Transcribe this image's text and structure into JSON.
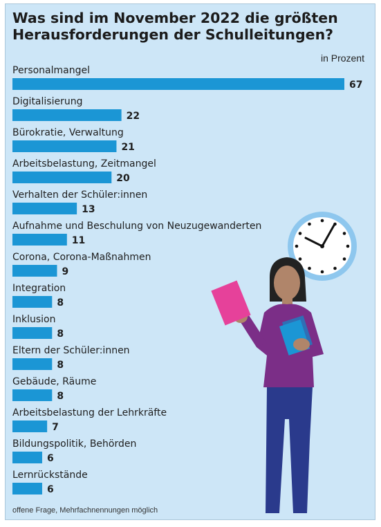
{
  "title": "Was sind im November 2022 die größten Heraus­forderungen der Schulleitungen?",
  "unit_label": "in Prozent",
  "footnote": "offene Frage, Mehrfachnennungen möglich",
  "colors": {
    "bar": "#1b96d5",
    "background": "#cde6f7"
  },
  "chart_data": {
    "type": "bar",
    "orientation": "horizontal",
    "categories": [
      "Personalmangel",
      "Digitalisierung",
      "Bürokratie, Verwaltung",
      "Arbeitsbelastung, Zeitmangel",
      "Verhalten der Schüler:innen",
      "Aufnahme und Beschulung von Neuzugewanderten",
      "Corona, Corona-Maßnahmen",
      "Integration",
      "Inklusion",
      "Eltern der Schüler:innen",
      "Gebäude, Räume",
      "Arbeitsbelastung der Lehrkräfte",
      "Bildungspolitik, Behörden",
      "Lernrückstände"
    ],
    "values": [
      67,
      22,
      21,
      20,
      13,
      11,
      9,
      8,
      8,
      8,
      8,
      7,
      6,
      6
    ],
    "xlim": [
      0,
      67
    ]
  }
}
